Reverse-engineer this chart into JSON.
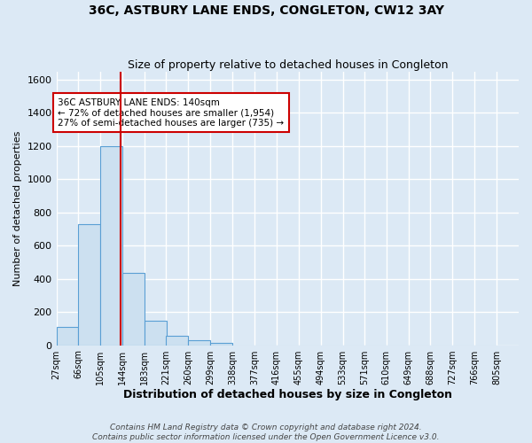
{
  "title": "36C, ASTBURY LANE ENDS, CONGLETON, CW12 3AY",
  "subtitle": "Size of property relative to detached houses in Congleton",
  "xlabel": "Distribution of detached houses by size in Congleton",
  "ylabel": "Number of detached properties",
  "bin_labels": [
    "27sqm",
    "66sqm",
    "105sqm",
    "144sqm",
    "183sqm",
    "221sqm",
    "260sqm",
    "299sqm",
    "338sqm",
    "377sqm",
    "416sqm",
    "455sqm",
    "494sqm",
    "533sqm",
    "571sqm",
    "610sqm",
    "649sqm",
    "688sqm",
    "727sqm",
    "766sqm",
    "805sqm"
  ],
  "bar_heights": [
    110,
    730,
    1200,
    435,
    150,
    55,
    30,
    15,
    0,
    0,
    0,
    0,
    0,
    0,
    0,
    0,
    0,
    0,
    0,
    0
  ],
  "bin_edges": [
    27,
    66,
    105,
    144,
    183,
    221,
    260,
    299,
    338,
    377,
    416,
    455,
    494,
    533,
    571,
    610,
    649,
    688,
    727,
    766,
    805
  ],
  "bar_color": "#cce0f0",
  "bar_edge_color": "#5a9fd4",
  "vline_x": 140,
  "vline_color": "#cc0000",
  "ylim": [
    0,
    1650
  ],
  "yticks": [
    0,
    200,
    400,
    600,
    800,
    1000,
    1200,
    1400,
    1600
  ],
  "annotation_text": "36C ASTBURY LANE ENDS: 140sqm\n← 72% of detached houses are smaller (1,954)\n27% of semi-detached houses are larger (735) →",
  "annotation_box_color": "#ffffff",
  "annotation_box_edge": "#cc0000",
  "footer_line1": "Contains HM Land Registry data © Crown copyright and database right 2024.",
  "footer_line2": "Contains public sector information licensed under the Open Government Licence v3.0.",
  "background_color": "#dce9f5",
  "axes_background": "#dce9f5",
  "grid_color": "#ffffff",
  "title_fontsize": 10,
  "subtitle_fontsize": 9,
  "ylabel_fontsize": 8,
  "xlabel_fontsize": 9,
  "annotation_fontsize": 7.5,
  "footer_fontsize": 6.5
}
